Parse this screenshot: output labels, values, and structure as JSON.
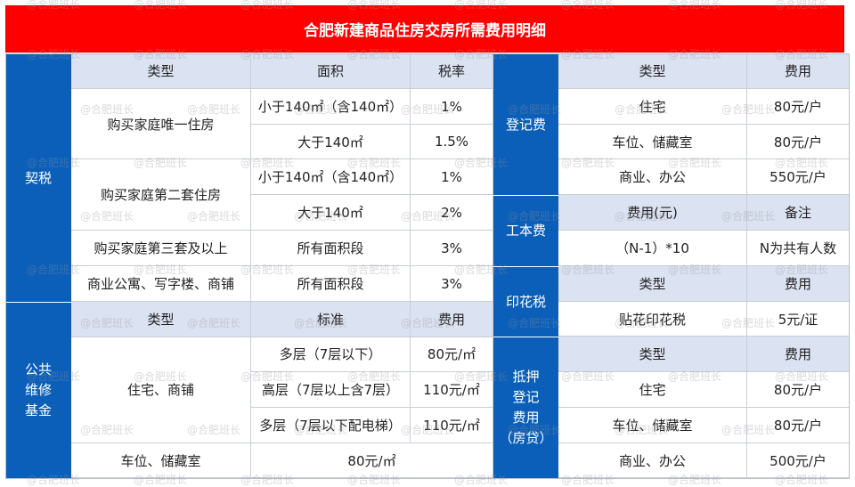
{
  "title": "合肥新建商品住房交房所需费用明细",
  "watermark": "@合肥班长",
  "left": {
    "qishui": {
      "label": "契税",
      "headers": [
        "类型",
        "面积",
        "税率"
      ],
      "rows": [
        {
          "type": "购买家庭唯一住房",
          "items": [
            {
              "area": "小于140㎡（含140㎡）",
              "rate": "1%"
            },
            {
              "area": "大于140㎡",
              "rate": "1.5%"
            }
          ]
        },
        {
          "type": "购买家庭第二套住房",
          "items": [
            {
              "area": "小于140㎡（含140㎡）",
              "rate": "1%"
            },
            {
              "area": "大于140㎡",
              "rate": "2%"
            }
          ]
        },
        {
          "type": "购买家庭第三套及以上",
          "items": [
            {
              "area": "所有面积段",
              "rate": "3%"
            }
          ]
        },
        {
          "type": "商业公寓、写字楼、商铺",
          "items": [
            {
              "area": "所有面积段",
              "rate": "3%"
            }
          ]
        }
      ]
    },
    "fund": {
      "label": "公共\n维修\n基金",
      "headers": [
        "类型",
        "标准",
        "费用"
      ],
      "group_type": "住宅、商铺",
      "items": [
        {
          "std": "多层（7层以下）",
          "fee": "80元/㎡"
        },
        {
          "std": "高层（7层以上含7层）",
          "fee": "110元/㎡"
        },
        {
          "std": "多层（7层以下配电梯）",
          "fee": "110元/㎡"
        }
      ],
      "last_type": "车位、储藏室",
      "last_fee": "80元/㎡"
    }
  },
  "right": {
    "dengji": {
      "label": "登记费",
      "headers": [
        "类型",
        "费用"
      ],
      "rows": [
        [
          "住宅",
          "80元/户"
        ],
        [
          "车位、储藏室",
          "80元/户"
        ],
        [
          "商业、办公",
          "550元/户"
        ]
      ]
    },
    "gongben": {
      "label": "工本费",
      "headers": [
        "费用(元)",
        "备注"
      ],
      "row": [
        "（N-1）*10",
        "N为共有人数"
      ]
    },
    "yinhua": {
      "label": "印花税",
      "headers": [
        "类型",
        "费用"
      ],
      "row": [
        "贴花印花税",
        "5元/证"
      ]
    },
    "diya": {
      "label": "抵押\n登记\n费用\n（房贷）",
      "headers": [
        "类型",
        "费用"
      ],
      "rows": [
        [
          "住宅",
          "80元/户"
        ],
        [
          "车位、储藏室",
          "80元/户"
        ],
        [
          "商业、办公",
          "500元/户"
        ]
      ]
    }
  }
}
